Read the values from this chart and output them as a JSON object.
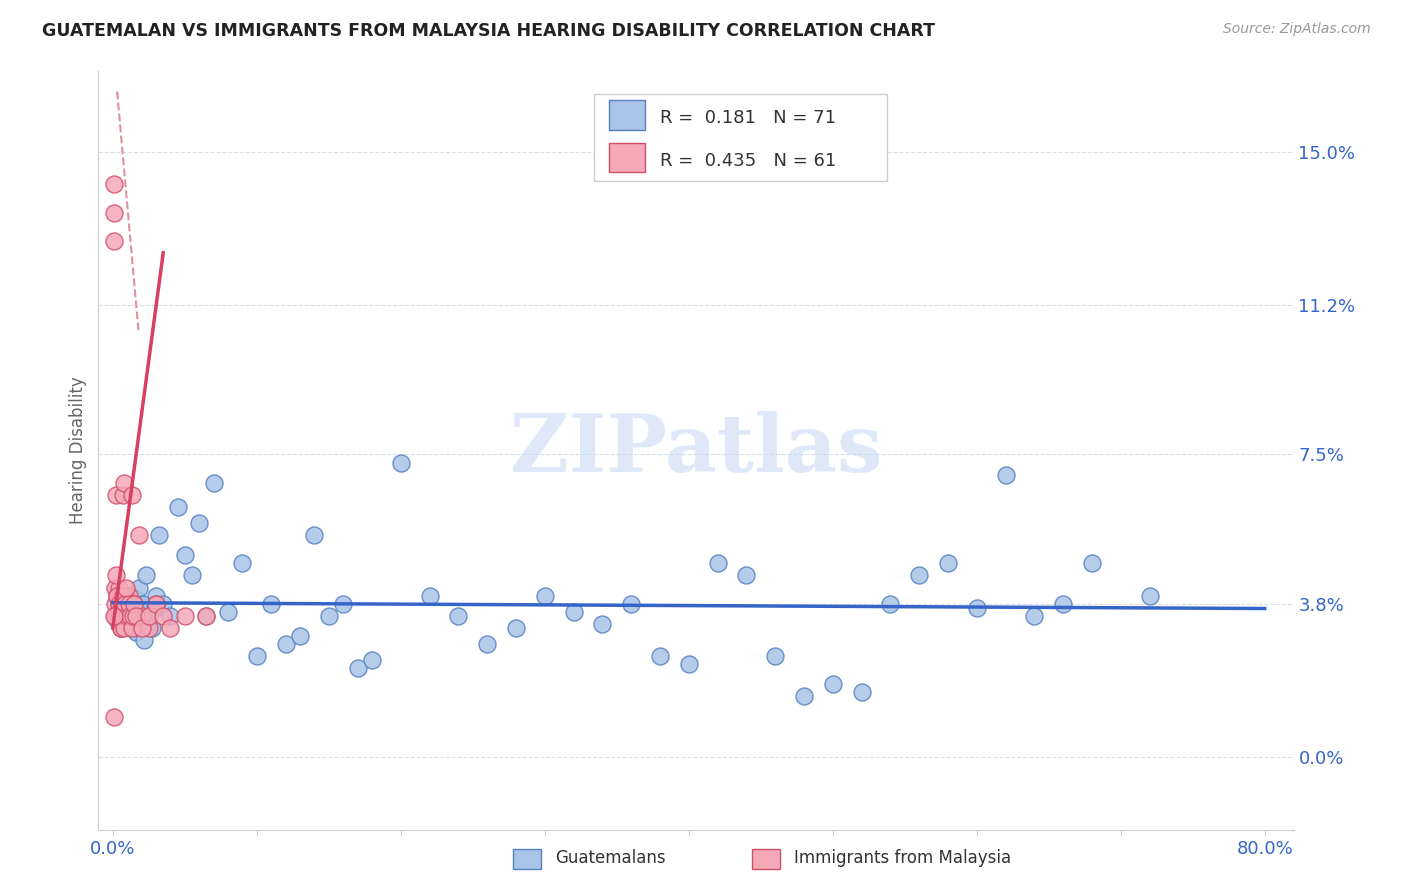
{
  "title": "GUATEMALAN VS IMMIGRANTS FROM MALAYSIA HEARING DISABILITY CORRELATION CHART",
  "source": "Source: ZipAtlas.com",
  "ylabel": "Hearing Disability",
  "ytick_labels": [
    "0.0%",
    "3.8%",
    "7.5%",
    "11.2%",
    "15.0%"
  ],
  "ytick_values": [
    0.0,
    3.8,
    7.5,
    11.2,
    15.0
  ],
  "xlim": [
    -1.0,
    82.0
  ],
  "ylim": [
    -1.8,
    17.0
  ],
  "legend_blue_R": "0.181",
  "legend_blue_N": "71",
  "legend_pink_R": "0.435",
  "legend_pink_N": "61",
  "blue_color": "#aac4e8",
  "pink_color": "#f5a8b8",
  "blue_edge_color": "#5580c0",
  "pink_edge_color": "#d0506a",
  "blue_trend_color": "#3565c8",
  "pink_trend_color": "#d84060",
  "pink_dashed_color": "#e0909a",
  "watermark": "ZIPatlas",
  "watermark_color": "#c8daf5",
  "grid_color": "#d8dde8",
  "blue_scatter_x": [
    0.3,
    0.5,
    0.6,
    0.8,
    0.9,
    1.0,
    1.1,
    1.2,
    1.3,
    1.35,
    1.4,
    1.5,
    1.6,
    1.7,
    1.8,
    1.9,
    2.0,
    2.1,
    2.2,
    2.3,
    2.4,
    2.5,
    2.7,
    2.9,
    3.0,
    3.2,
    3.5,
    4.0,
    4.5,
    5.0,
    5.5,
    6.0,
    6.5,
    7.0,
    8.0,
    9.0,
    10.0,
    11.0,
    12.0,
    13.0,
    14.0,
    15.0,
    16.0,
    17.0,
    18.0,
    20.0,
    22.0,
    24.0,
    26.0,
    28.0,
    30.0,
    32.0,
    34.0,
    36.0,
    38.0,
    40.0,
    42.0,
    44.0,
    46.0,
    48.0,
    50.0,
    52.0,
    54.0,
    56.0,
    58.0,
    60.0,
    62.0,
    64.0,
    66.0,
    68.0,
    72.0
  ],
  "blue_scatter_y": [
    3.4,
    3.6,
    3.2,
    3.8,
    3.5,
    3.7,
    3.3,
    3.6,
    4.0,
    3.2,
    3.5,
    3.8,
    3.1,
    3.9,
    4.2,
    3.4,
    3.6,
    3.8,
    2.9,
    4.5,
    3.3,
    3.5,
    3.2,
    3.7,
    4.0,
    5.5,
    3.8,
    3.5,
    6.2,
    5.0,
    4.5,
    5.8,
    3.5,
    6.8,
    3.6,
    4.8,
    2.5,
    3.8,
    2.8,
    3.0,
    5.5,
    3.5,
    3.8,
    2.2,
    2.4,
    7.3,
    4.0,
    3.5,
    2.8,
    3.2,
    4.0,
    3.6,
    3.3,
    3.8,
    2.5,
    2.3,
    4.8,
    4.5,
    2.5,
    1.5,
    1.8,
    1.6,
    3.8,
    4.5,
    4.8,
    3.7,
    7.0,
    3.5,
    3.8,
    4.8,
    4.0
  ],
  "pink_scatter_x": [
    0.05,
    0.08,
    0.1,
    0.12,
    0.15,
    0.2,
    0.25,
    0.3,
    0.35,
    0.4,
    0.45,
    0.5,
    0.55,
    0.6,
    0.65,
    0.7,
    0.75,
    0.8,
    0.85,
    0.9,
    0.95,
    1.0,
    1.1,
    1.2,
    1.3,
    1.5,
    1.8,
    2.0,
    2.5,
    3.0,
    0.15,
    0.2,
    0.3,
    0.35,
    0.4,
    0.45,
    0.5,
    0.55,
    0.6,
    0.65,
    0.7,
    0.75,
    0.8,
    0.85,
    0.9,
    1.0,
    1.1,
    1.2,
    1.3,
    1.4,
    1.5,
    1.6,
    2.0,
    2.5,
    3.0,
    3.5,
    4.0,
    5.0,
    6.5,
    0.1,
    0.08
  ],
  "pink_scatter_y": [
    14.2,
    12.8,
    13.5,
    3.8,
    4.2,
    3.5,
    6.5,
    4.0,
    3.5,
    4.2,
    3.8,
    3.5,
    4.0,
    3.2,
    3.8,
    6.5,
    6.8,
    3.6,
    3.4,
    3.8,
    3.5,
    3.9,
    4.0,
    3.5,
    6.5,
    3.8,
    5.5,
    3.5,
    3.2,
    3.8,
    3.5,
    4.5,
    4.0,
    3.5,
    3.8,
    3.6,
    3.4,
    3.2,
    3.5,
    3.8,
    4.0,
    3.5,
    3.2,
    3.8,
    4.2,
    3.5,
    3.8,
    3.5,
    3.2,
    3.5,
    3.8,
    3.5,
    3.2,
    3.5,
    3.8,
    3.5,
    3.2,
    3.5,
    3.5,
    1.0,
    3.5
  ],
  "pink_trend_x_start": 0.0,
  "pink_trend_x_end": 3.5,
  "pink_trend_y_start": 3.2,
  "pink_trend_y_end": 12.5,
  "pink_dash_x_start": 0.3,
  "pink_dash_x_end": 1.8,
  "pink_dash_y_start": 16.5,
  "pink_dash_y_end": 10.5
}
